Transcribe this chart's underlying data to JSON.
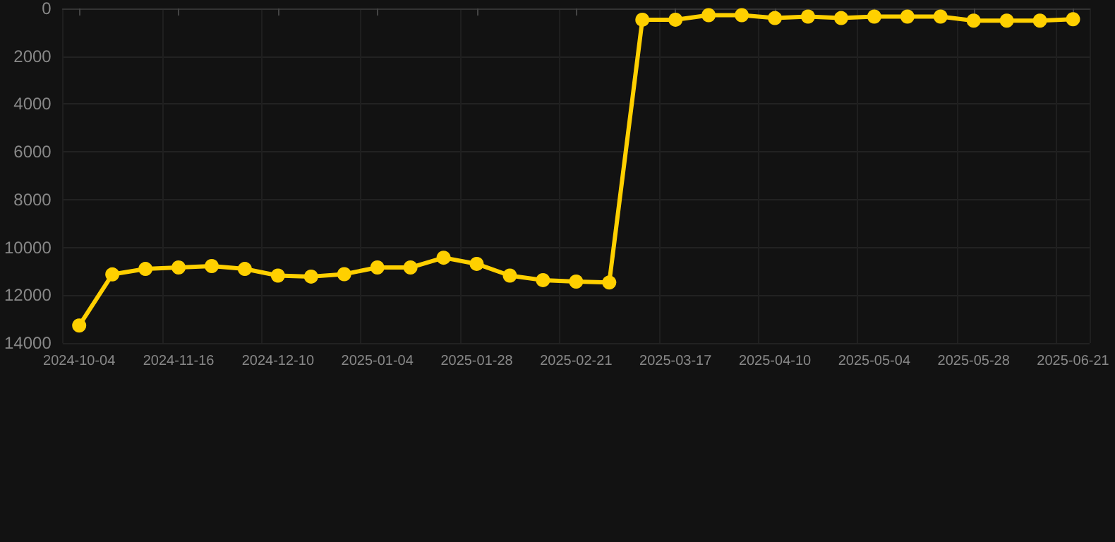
{
  "chart_data": {
    "type": "line",
    "categories": [
      "2024-10-04",
      null,
      null,
      "2024-11-16",
      null,
      null,
      "2024-12-10",
      null,
      null,
      "2025-01-04",
      null,
      null,
      "2025-01-28",
      null,
      null,
      "2025-02-21",
      null,
      null,
      "2025-03-17",
      null,
      null,
      "2025-04-10",
      null,
      null,
      "2025-05-04",
      null,
      null,
      "2025-05-28",
      null,
      null,
      "2025-06-21"
    ],
    "series": [
      {
        "color": "#ffd000",
        "values": [
          13270,
          11130,
          10900,
          10840,
          10780,
          10900,
          11180,
          11220,
          11120,
          10840,
          10840,
          10430,
          10690,
          11180,
          11370,
          11430,
          11470,
          470,
          470,
          280,
          280,
          400,
          340,
          400,
          340,
          340,
          340,
          510,
          510,
          510,
          450
        ]
      }
    ],
    "ylim": [
      14000,
      0
    ],
    "yticks": [
      0,
      2000,
      4000,
      6000,
      8000,
      10000,
      12000,
      14000
    ],
    "grid": true,
    "marker": "circle",
    "line_style": "solid"
  }
}
